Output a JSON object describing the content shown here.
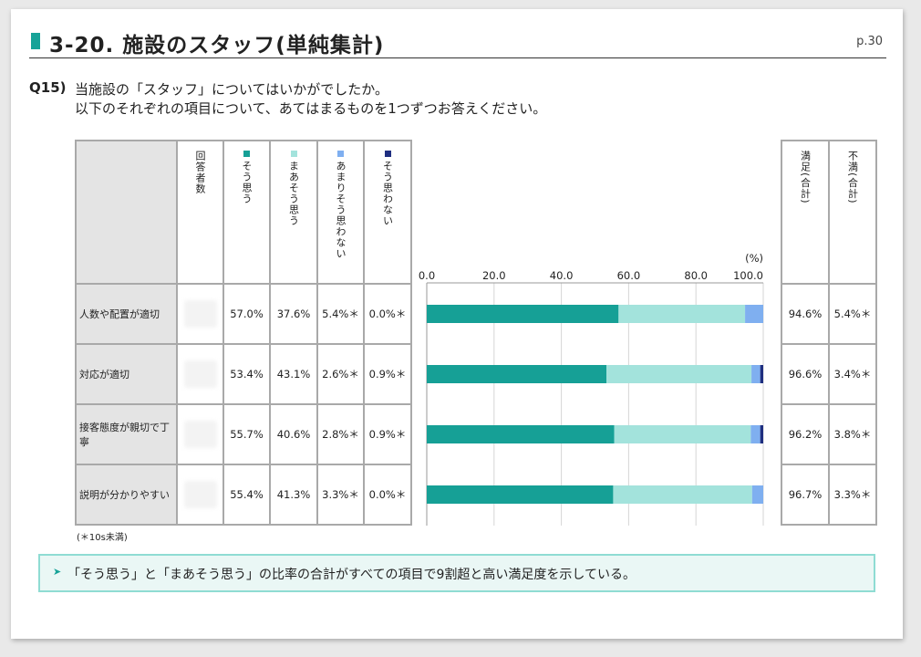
{
  "page": {
    "title": "3-20. 施設のスタッフ(単純集計)",
    "page_number": "p.30",
    "question_number": "Q15)",
    "question_line1": "当施設の「スタッフ」についてはいかがでしたか。",
    "question_line2": "以下のそれぞれの項目について、あてはまるものを1つずつお答えください。",
    "note": "(＊10s未満)",
    "summary": "「そう思う」と「まあそう思う」の比率の合計がすべての項目で9割超と高い満足度を示している。"
  },
  "headers": {
    "respondents": "回答者数",
    "satisfied_total": "満足(合計)",
    "dissatisfied_total": "不満(合計)",
    "pct_unit": "(%)"
  },
  "rows": [
    {
      "label": "人数や配置が適切",
      "so_omou": "57.0%",
      "maa": "37.6%",
      "amari": "5.4%＊",
      "omowanai": "0.0%＊",
      "manzoku": "94.6%",
      "fuman": "5.4%＊"
    },
    {
      "label": "対応が適切",
      "so_omou": "53.4%",
      "maa": "43.1%",
      "amari": "2.6%＊",
      "omowanai": "0.9%＊",
      "manzoku": "96.6%",
      "fuman": "3.4%＊"
    },
    {
      "label": "接客態度が親切で丁寧",
      "so_omou": "55.7%",
      "maa": "40.6%",
      "amari": "2.8%＊",
      "omowanai": "0.9%＊",
      "manzoku": "96.2%",
      "fuman": "3.8%＊"
    },
    {
      "label": "説明が分かりやすい",
      "so_omou": "55.4%",
      "maa": "41.3%",
      "amari": "3.3%＊",
      "omowanai": "0.0%＊",
      "manzoku": "96.7%",
      "fuman": "3.3%＊"
    }
  ],
  "chart_data": {
    "type": "bar",
    "orientation": "horizontal",
    "stacked": true,
    "categories": [
      "人数や配置が適切",
      "対応が適切",
      "接客態度が親切で丁寧",
      "説明が分かりやすい"
    ],
    "series": [
      {
        "name": "そう思う",
        "color": "#16a096",
        "values": [
          57.0,
          53.4,
          55.7,
          55.4
        ]
      },
      {
        "name": "まあそう思う",
        "color": "#a3e3dc",
        "values": [
          37.6,
          43.1,
          40.6,
          41.3
        ]
      },
      {
        "name": "あまりそう思わない",
        "color": "#7faff0",
        "values": [
          5.4,
          2.6,
          2.8,
          3.3
        ]
      },
      {
        "name": "そう思わない",
        "color": "#1f2f80",
        "values": [
          0.0,
          0.9,
          0.9,
          0.0
        ]
      }
    ],
    "xlim": [
      0,
      100
    ],
    "xticks": [
      "0.0",
      "20.0",
      "40.0",
      "60.0",
      "80.0",
      "100.0"
    ],
    "xlabel": "(%)",
    "grid": true,
    "legend": "column-headers"
  }
}
